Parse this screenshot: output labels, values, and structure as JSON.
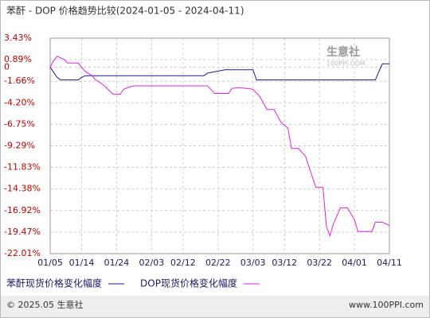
{
  "chart_data": {
    "type": "line",
    "title": "苯酐 - DOP 价格趋势比较(2024-01-05 - 2024-04-11)",
    "watermark": "生意社",
    "watermark_sub": "100PPI.COM",
    "footer_left": "© 2025.05 生意社",
    "footer_right": "www.100PPI.com",
    "xlim": [
      "2024-01-05",
      "2024-04-11"
    ],
    "xticks": [
      {
        "value": "2024-01-05",
        "label": "01/05"
      },
      {
        "value": "2024-01-14",
        "label": "01/14"
      },
      {
        "value": "2024-01-24",
        "label": "01/24"
      },
      {
        "value": "2024-02-03",
        "label": "02/03"
      },
      {
        "value": "2024-02-12",
        "label": "02/12"
      },
      {
        "value": "2024-02-22",
        "label": "02/22"
      },
      {
        "value": "2024-03-03",
        "label": "03/03"
      },
      {
        "value": "2024-03-12",
        "label": "03/12"
      },
      {
        "value": "2024-03-22",
        "label": "03/22"
      },
      {
        "value": "2024-04-01",
        "label": "04/01"
      },
      {
        "value": "2024-04-11",
        "label": "04/11"
      }
    ],
    "ylim": [
      -22.01,
      3.43
    ],
    "yticks": [
      {
        "value": 3.43,
        "label": "3.43%"
      },
      {
        "value": 0.89,
        "label": "0.89%"
      },
      0,
      {
        "value": -1.66,
        "label": "-1.66%"
      },
      {
        "value": -4.2,
        "label": "-4.20%"
      },
      {
        "value": -6.75,
        "label": "-6.75%"
      },
      {
        "value": -9.29,
        "label": "-9.29%"
      },
      {
        "value": -11.83,
        "label": "-11.83%"
      },
      {
        "value": -14.38,
        "label": "-14.38%"
      },
      {
        "value": -16.92,
        "label": "-16.92%"
      },
      {
        "value": -19.47,
        "label": "-19.47%"
      },
      {
        "value": -22.01,
        "label": "-22.01%"
      }
    ],
    "grid": true,
    "legend": "bottom",
    "series": [
      {
        "name": "苯酐现货价格变化幅度",
        "color": "#1a1aa6",
        "x": [
          "2024-01-05",
          "2024-01-07",
          "2024-01-08",
          "2024-01-13",
          "2024-01-14",
          "2024-01-15",
          "2024-02-18",
          "2024-02-19",
          "2024-02-24",
          "2024-03-03",
          "2024-03-04",
          "2024-04-07",
          "2024-04-08",
          "2024-04-09",
          "2024-04-11"
        ],
        "values": [
          0,
          -1.2,
          -1.5,
          -1.5,
          -1.2,
          -1.0,
          -1.0,
          -0.7,
          -0.3,
          -0.3,
          -1.5,
          -1.5,
          -0.5,
          0.4,
          0.4
        ]
      },
      {
        "name": "DOP现货价格变化幅度",
        "color": "#e020e0",
        "x": [
          "2024-01-05",
          "2024-01-06",
          "2024-01-07",
          "2024-01-09",
          "2024-01-10",
          "2024-01-13",
          "2024-01-14",
          "2024-01-15",
          "2024-01-17",
          "2024-01-18",
          "2024-01-20",
          "2024-01-23",
          "2024-01-25",
          "2024-01-26",
          "2024-01-28",
          "2024-01-29",
          "2024-02-19",
          "2024-02-21",
          "2024-02-25",
          "2024-02-26",
          "2024-02-28",
          "2024-03-03",
          "2024-03-05",
          "2024-03-07",
          "2024-03-09",
          "2024-03-11",
          "2024-03-13",
          "2024-03-14",
          "2024-03-16",
          "2024-03-18",
          "2024-03-20",
          "2024-03-21",
          "2024-03-23",
          "2024-03-24",
          "2024-03-25",
          "2024-03-26",
          "2024-03-28",
          "2024-03-30",
          "2024-04-01",
          "2024-04-02",
          "2024-04-06",
          "2024-04-07",
          "2024-04-09",
          "2024-04-11"
        ],
        "values": [
          0,
          0.8,
          1.3,
          0.9,
          0.5,
          0.5,
          0,
          -0.5,
          -1.0,
          -1.5,
          -2.0,
          -3.2,
          -3.2,
          -2.6,
          -2.3,
          -2.2,
          -2.2,
          -3.1,
          -3.1,
          -2.5,
          -2.4,
          -2.6,
          -3.5,
          -5.0,
          -5.0,
          -6.5,
          -7.2,
          -9.6,
          -9.6,
          -10.5,
          -13.0,
          -14.2,
          -14.2,
          -18.8,
          -19.9,
          -18.5,
          -16.6,
          -16.6,
          -18.0,
          -19.4,
          -19.4,
          -18.3,
          -18.3,
          -18.7
        ]
      }
    ]
  }
}
